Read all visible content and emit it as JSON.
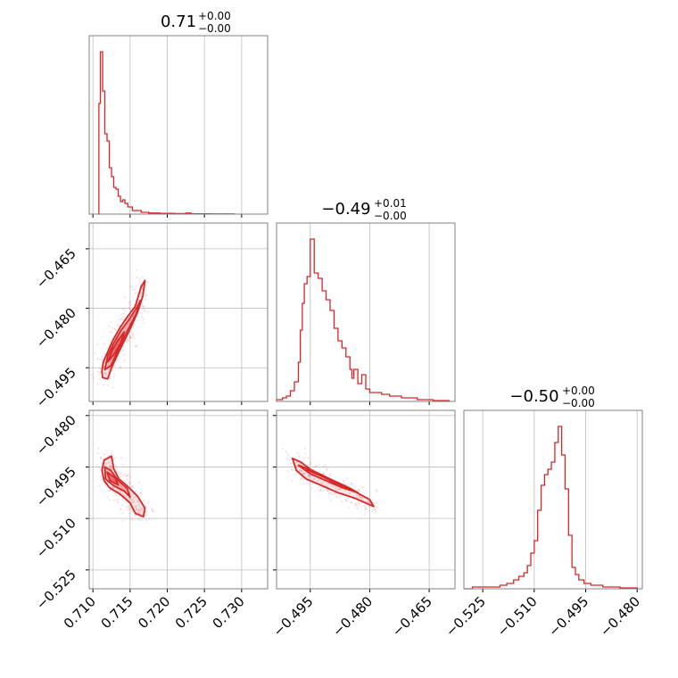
{
  "chart_data": {
    "type": "corner",
    "series_color": "#d62728",
    "grid": true,
    "parameters": [
      {
        "title_value": "0.71",
        "title_plus": "+0.00",
        "title_minus": "−0.00",
        "range": [
          0.7095,
          0.7335
        ],
        "ticks": [
          0.71,
          0.715,
          0.72,
          0.725,
          0.73
        ],
        "tick_labels": [
          "0.710",
          "0.715",
          "0.720",
          "0.725",
          "0.730"
        ],
        "histogram": [
          [
            0.7107,
            0
          ],
          [
            0.7108,
            0.62
          ],
          [
            0.711,
            0.91
          ],
          [
            0.7113,
            0.69
          ],
          [
            0.7116,
            0.45
          ],
          [
            0.7119,
            0.41
          ],
          [
            0.7122,
            0.26
          ],
          [
            0.7125,
            0.21
          ],
          [
            0.7128,
            0.15
          ],
          [
            0.7131,
            0.14
          ],
          [
            0.7134,
            0.1
          ],
          [
            0.7137,
            0.07
          ],
          [
            0.714,
            0.08
          ],
          [
            0.7143,
            0.06
          ],
          [
            0.7147,
            0.04
          ],
          [
            0.7153,
            0.02
          ],
          [
            0.7165,
            0.01
          ],
          [
            0.7175,
            0.006
          ],
          [
            0.719,
            0.004
          ],
          [
            0.721,
            0.003
          ],
          [
            0.7225,
            0.006
          ],
          [
            0.7232,
            0.002
          ],
          [
            0.726,
            0.001
          ],
          [
            0.729,
            0
          ]
        ]
      },
      {
        "title_value": "−0.49",
        "title_plus": "+0.01",
        "title_minus": "−0.00",
        "range": [
          -0.5035,
          -0.4585
        ],
        "ticks": [
          -0.495,
          -0.48,
          -0.465
        ],
        "tick_labels": [
          "−0.495",
          "−0.480",
          "−0.465"
        ],
        "histogram": [
          [
            -0.5035,
            0.01
          ],
          [
            -0.502,
            0.02
          ],
          [
            -0.501,
            0.03
          ],
          [
            -0.5,
            0.06
          ],
          [
            -0.499,
            0.11
          ],
          [
            -0.498,
            0.22
          ],
          [
            -0.4975,
            0.4
          ],
          [
            -0.497,
            0.55
          ],
          [
            -0.4965,
            0.66
          ],
          [
            -0.4958,
            0.7
          ],
          [
            -0.495,
            0.91
          ],
          [
            -0.494,
            0.72
          ],
          [
            -0.493,
            0.69
          ],
          [
            -0.492,
            0.62
          ],
          [
            -0.491,
            0.57
          ],
          [
            -0.49,
            0.51
          ],
          [
            -0.489,
            0.41
          ],
          [
            -0.488,
            0.34
          ],
          [
            -0.487,
            0.3
          ],
          [
            -0.486,
            0.25
          ],
          [
            -0.485,
            0.18
          ],
          [
            -0.4845,
            0.13
          ],
          [
            -0.484,
            0.18
          ],
          [
            -0.483,
            0.1
          ],
          [
            -0.482,
            0.15
          ],
          [
            -0.481,
            0.07
          ],
          [
            -0.48,
            0.05
          ],
          [
            -0.478,
            0.05
          ],
          [
            -0.477,
            0.04
          ],
          [
            -0.475,
            0.03
          ],
          [
            -0.472,
            0.02
          ],
          [
            -0.468,
            0.01
          ],
          [
            -0.464,
            0.005
          ],
          [
            -0.46,
            0
          ]
        ]
      },
      {
        "title_value": "−0.50",
        "title_plus": "+0.00",
        "title_minus": "−0.00",
        "range": [
          -0.5305,
          -0.4785
        ],
        "ticks": [
          -0.525,
          -0.51,
          -0.495,
          -0.48
        ],
        "tick_labels": [
          "−0.525",
          "−0.510",
          "−0.495",
          "−0.480"
        ],
        "histogram": [
          [
            -0.5305,
            0
          ],
          [
            -0.528,
            0.01
          ],
          [
            -0.523,
            0.01
          ],
          [
            -0.52,
            0.02
          ],
          [
            -0.518,
            0.03
          ],
          [
            -0.516,
            0.05
          ],
          [
            -0.5145,
            0.07
          ],
          [
            -0.513,
            0.09
          ],
          [
            -0.512,
            0.13
          ],
          [
            -0.511,
            0.2
          ],
          [
            -0.51,
            0.27
          ],
          [
            -0.509,
            0.44
          ],
          [
            -0.508,
            0.58
          ],
          [
            -0.507,
            0.64
          ],
          [
            -0.506,
            0.67
          ],
          [
            -0.505,
            0.71
          ],
          [
            -0.504,
            0.82
          ],
          [
            -0.503,
            0.91
          ],
          [
            -0.502,
            0.75
          ],
          [
            -0.501,
            0.56
          ],
          [
            -0.5,
            0.3
          ],
          [
            -0.499,
            0.12
          ],
          [
            -0.498,
            0.08
          ],
          [
            -0.497,
            0.05
          ],
          [
            -0.4955,
            0.03
          ],
          [
            -0.4935,
            0.02
          ],
          [
            -0.49,
            0.01
          ],
          [
            -0.485,
            0.005
          ],
          [
            -0.48,
            0
          ]
        ]
      }
    ],
    "joint_panels": [
      {
        "x_param": 0,
        "y_param": 1,
        "contours": [
          [
            [
              0.7113,
              -0.4975
            ],
            [
              0.7112,
              -0.496
            ],
            [
              0.7114,
              -0.4935
            ],
            [
              0.712,
              -0.491
            ],
            [
              0.7127,
              -0.488
            ],
            [
              0.7136,
              -0.485
            ],
            [
              0.7147,
              -0.482
            ],
            [
              0.7157,
              -0.4795
            ],
            [
              0.7165,
              -0.4745
            ],
            [
              0.717,
              -0.473
            ],
            [
              0.7167,
              -0.477
            ],
            [
              0.716,
              -0.481
            ],
            [
              0.7148,
              -0.486
            ],
            [
              0.7135,
              -0.491
            ],
            [
              0.7125,
              -0.495
            ],
            [
              0.712,
              -0.4978
            ]
          ],
          [
            [
              0.7116,
              -0.4955
            ],
            [
              0.712,
              -0.492
            ],
            [
              0.7128,
              -0.4888
            ],
            [
              0.7138,
              -0.4855
            ],
            [
              0.7148,
              -0.483
            ],
            [
              0.716,
              -0.4795
            ],
            [
              0.7164,
              -0.478
            ],
            [
              0.7158,
              -0.4815
            ],
            [
              0.7146,
              -0.4858
            ],
            [
              0.7134,
              -0.4905
            ],
            [
              0.7124,
              -0.4945
            ]
          ],
          [
            [
              0.712,
              -0.4935
            ],
            [
              0.7126,
              -0.4905
            ],
            [
              0.7134,
              -0.488
            ],
            [
              0.7142,
              -0.486
            ],
            [
              0.7138,
              -0.4885
            ],
            [
              0.713,
              -0.4912
            ]
          ]
        ],
        "scatter_seed": 11
      },
      {
        "x_param": 0,
        "y_param": 2,
        "contours": [
          [
            [
              0.7115,
              -0.493
            ],
            [
              0.7112,
              -0.496
            ],
            [
              0.7115,
              -0.499
            ],
            [
              0.7122,
              -0.501
            ],
            [
              0.7137,
              -0.503
            ],
            [
              0.715,
              -0.5055
            ],
            [
              0.7157,
              -0.5085
            ],
            [
              0.7168,
              -0.5095
            ],
            [
              0.717,
              -0.507
            ],
            [
              0.716,
              -0.5035
            ],
            [
              0.7146,
              -0.5005
            ],
            [
              0.7135,
              -0.4985
            ],
            [
              0.7128,
              -0.4955
            ],
            [
              0.7125,
              -0.4918
            ]
          ],
          [
            [
              0.7116,
              -0.495
            ],
            [
              0.7117,
              -0.4985
            ],
            [
              0.7128,
              -0.5005
            ],
            [
              0.7142,
              -0.502
            ],
            [
              0.715,
              -0.5038
            ],
            [
              0.7146,
              -0.5012
            ],
            [
              0.7134,
              -0.499
            ],
            [
              0.7124,
              -0.496
            ]
          ],
          [
            [
              0.7119,
              -0.4965
            ],
            [
              0.7123,
              -0.499
            ],
            [
              0.7134,
              -0.5002
            ],
            [
              0.713,
              -0.4982
            ]
          ]
        ],
        "scatter_seed": 23
      },
      {
        "x_param": 1,
        "y_param": 2,
        "contours": [
          [
            [
              -0.4995,
              -0.4925
            ],
            [
              -0.4985,
              -0.496
            ],
            [
              -0.496,
              -0.4985
            ],
            [
              -0.492,
              -0.5005
            ],
            [
              -0.488,
              -0.5025
            ],
            [
              -0.484,
              -0.504
            ],
            [
              -0.48,
              -0.506
            ],
            [
              -0.479,
              -0.5065
            ],
            [
              -0.48,
              -0.5045
            ],
            [
              -0.484,
              -0.502
            ],
            [
              -0.489,
              -0.4995
            ],
            [
              -0.494,
              -0.4965
            ],
            [
              -0.4975,
              -0.4935
            ]
          ],
          [
            [
              -0.498,
              -0.4945
            ],
            [
              -0.495,
              -0.497
            ],
            [
              -0.491,
              -0.499
            ],
            [
              -0.487,
              -0.501
            ],
            [
              -0.483,
              -0.5025
            ],
            [
              -0.485,
              -0.5012
            ],
            [
              -0.49,
              -0.4985
            ],
            [
              -0.4945,
              -0.496
            ]
          ],
          [
            [
              -0.496,
              -0.4958
            ],
            [
              -0.4925,
              -0.4975
            ],
            [
              -0.489,
              -0.4992
            ],
            [
              -0.491,
              -0.498
            ]
          ]
        ],
        "scatter_seed": 37
      }
    ]
  }
}
